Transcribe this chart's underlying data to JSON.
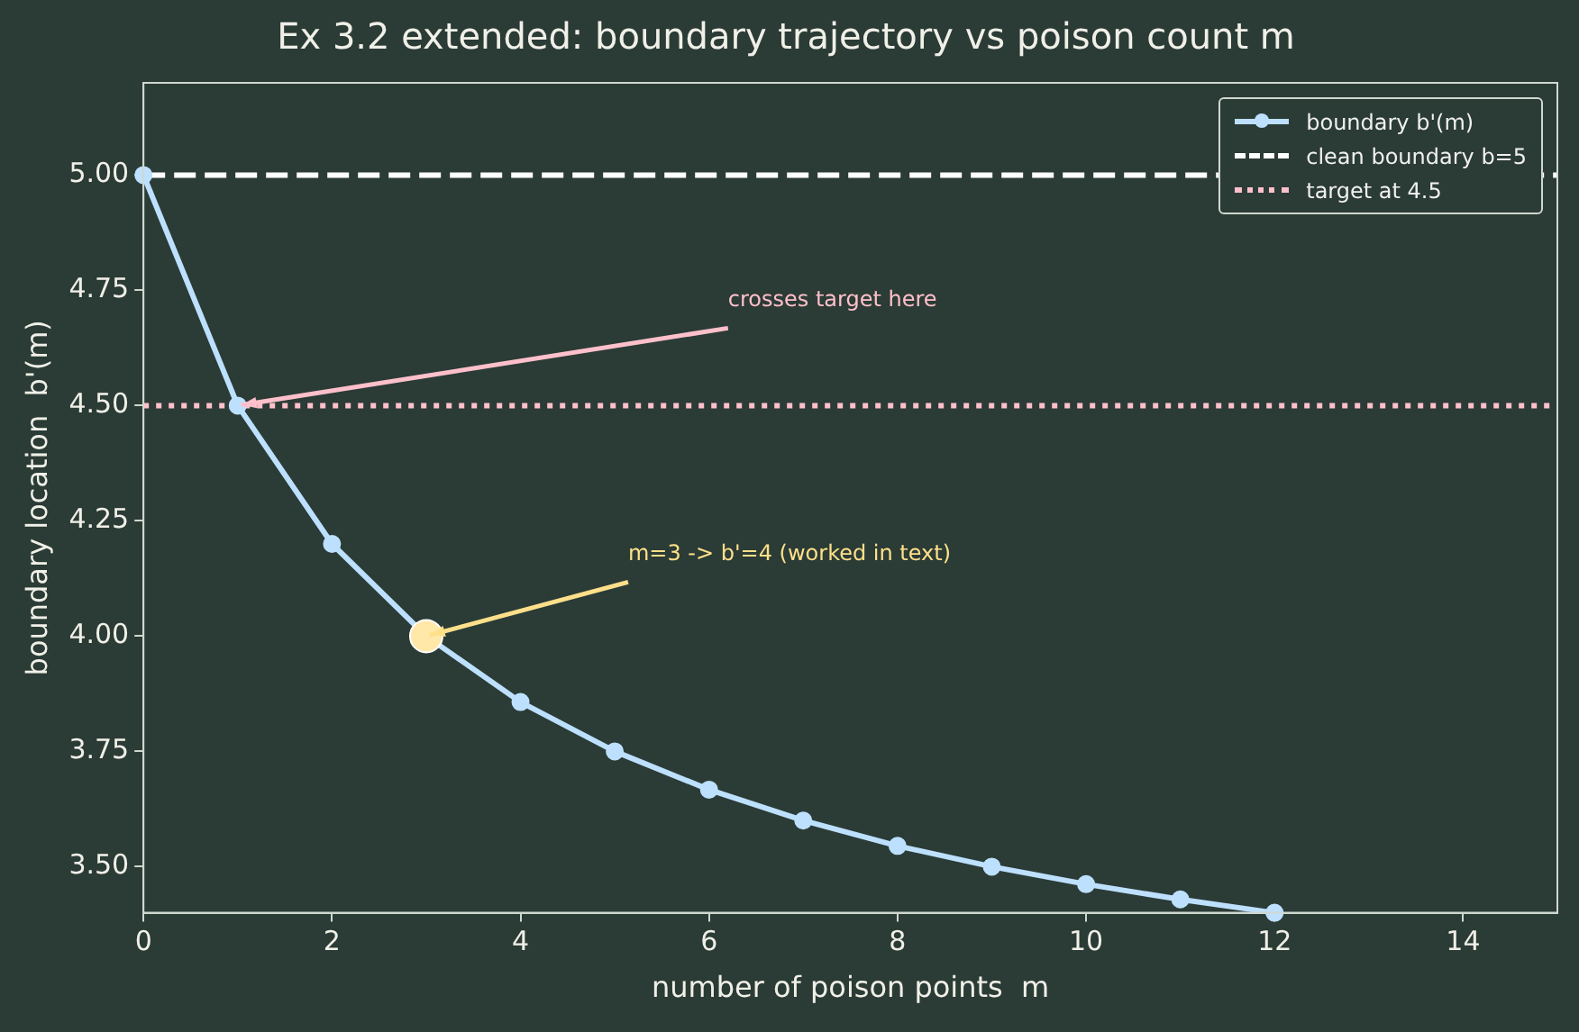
{
  "chart_data": {
    "type": "line",
    "title": "Ex 3.2 extended: boundary trajectory vs poison count m",
    "xlabel": "number of poison points  m",
    "ylabel": "boundary location  b'(m)",
    "x": [
      0,
      1,
      2,
      3,
      4,
      5,
      6,
      7,
      8,
      9,
      10,
      11,
      12
    ],
    "series": [
      {
        "name": "boundary b'(m)",
        "color": "#bde0fe",
        "marker": "circle",
        "values": [
          5,
          4.5,
          4.2,
          4,
          3.857,
          3.75,
          3.667,
          3.6,
          3.545,
          3.5,
          3.462,
          3.429,
          3.4
        ]
      },
      {
        "type": "scatter",
        "color": "#ffe8a8",
        "x": [
          3
        ],
        "values": [
          4
        ]
      }
    ],
    "ref_lines": [
      {
        "axis": "y",
        "value": 5,
        "label": "clean boundary b=5",
        "color": "#ffffff",
        "line_style": "dashed"
      },
      {
        "axis": "y",
        "value": 4.5,
        "label": "target at 4.5",
        "color": "#ffc0cb",
        "line_style": "dotted"
      }
    ],
    "annotations": [
      {
        "text": "crosses target here",
        "x": 1,
        "y": 4.5
      },
      {
        "text": "m=3 -> b'=4 (worked in text)",
        "x": 3,
        "y": 4
      }
    ],
    "xlim": [
      0,
      15
    ],
    "xticks": [
      0,
      2,
      4,
      6,
      8,
      10,
      12,
      14
    ],
    "ylim": [
      3.4,
      5.2
    ],
    "yticks": [
      {
        "value": 3.5,
        "label": "3.50"
      },
      {
        "value": 3.75,
        "label": "3.75"
      },
      {
        "value": 4,
        "label": "4.00"
      },
      {
        "value": 4.25,
        "label": "4.25"
      },
      {
        "value": 4.5,
        "label": "4.50"
      },
      {
        "value": 4.75,
        "label": "4.75"
      },
      {
        "value": 5,
        "label": "5.00"
      }
    ],
    "grid": false,
    "legend": "top right"
  }
}
